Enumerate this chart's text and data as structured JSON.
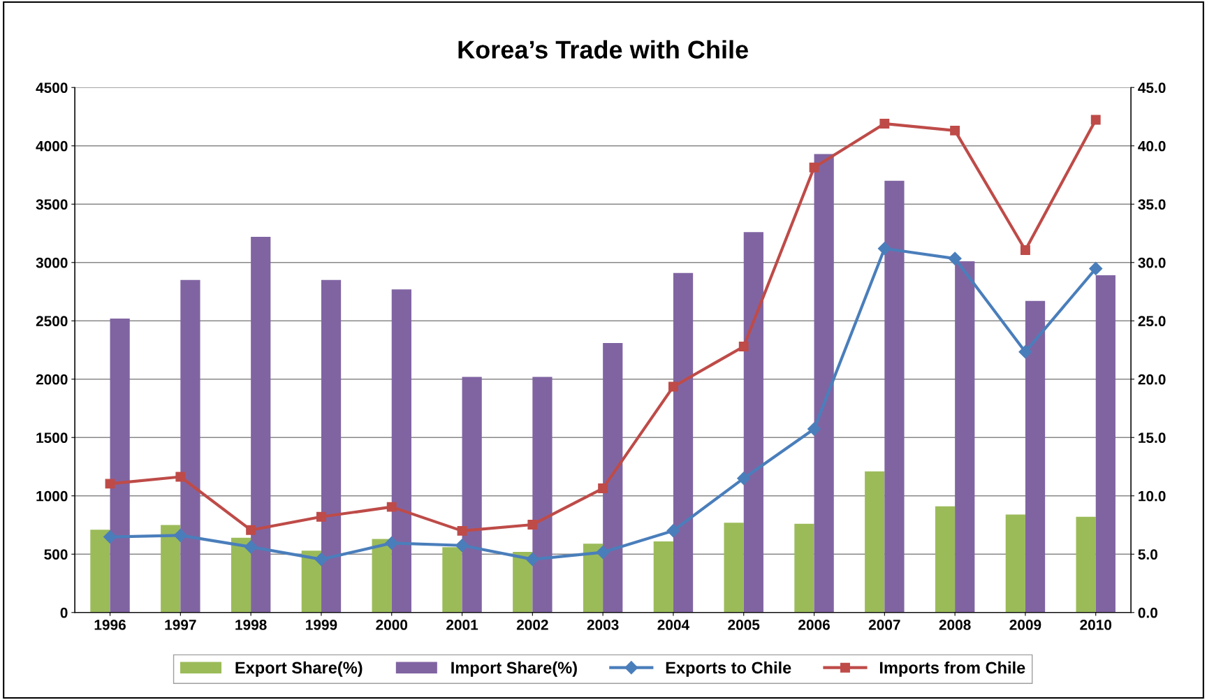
{
  "chart_data": {
    "type": "bar",
    "title": "Korea’s Trade with Chile",
    "categories": [
      "1996",
      "1997",
      "1998",
      "1999",
      "2000",
      "2001",
      "2002",
      "2003",
      "2004",
      "2005",
      "2006",
      "2007",
      "2008",
      "2009",
      "2010"
    ],
    "series": [
      {
        "name": "Export Share(%)",
        "axis": "y2",
        "color": "#9bbb59",
        "values": [
          7.1,
          7.5,
          6.4,
          5.3,
          6.3,
          5.6,
          5.2,
          5.9,
          6.1,
          7.7,
          7.6,
          12.1,
          9.1,
          8.4,
          8.2
        ]
      },
      {
        "name": "Import Share(%)",
        "axis": "y2",
        "color": "#8064a2",
        "values": [
          25.2,
          28.5,
          32.2,
          28.5,
          27.7,
          20.2,
          20.2,
          23.1,
          29.1,
          32.6,
          39.3,
          37.0,
          30.1,
          26.7,
          28.9
        ]
      },
      {
        "name": "Exports to Chile",
        "type": "line",
        "marker": "diamond",
        "color": "#4a7ebb",
        "values": [
          648,
          661,
          562,
          456,
          595,
          575,
          456,
          516,
          701,
          1150,
          1573,
          3120,
          3034,
          2234,
          2948
        ]
      },
      {
        "name": "Imports from Chile",
        "type": "line",
        "marker": "square",
        "color": "#be4b48",
        "values": [
          1104,
          1163,
          707,
          820,
          905,
          700,
          753,
          1064,
          1936,
          2280,
          3814,
          4190,
          4131,
          3106,
          4223
        ]
      }
    ],
    "ylim": [
      0,
      4500
    ],
    "yticks": [
      0,
      500,
      1000,
      1500,
      2000,
      2500,
      3000,
      3500,
      4000,
      4500
    ],
    "y2lim": [
      0,
      45
    ],
    "y2ticks": [
      {
        "value": 0,
        "label": "0.0"
      },
      {
        "value": 5,
        "label": "5.0"
      },
      {
        "value": 10,
        "label": "10.0"
      },
      {
        "value": 15,
        "label": "15.0"
      },
      {
        "value": 20,
        "label": "20.0"
      },
      {
        "value": 25,
        "label": "25.0"
      },
      {
        "value": 30,
        "label": "30.0"
      },
      {
        "value": 35,
        "label": "35.0"
      },
      {
        "value": 40,
        "label": "40.0"
      },
      {
        "value": 45,
        "label": "45.0"
      }
    ],
    "grid": "y",
    "legend": "bottom",
    "line_style": "solid"
  }
}
